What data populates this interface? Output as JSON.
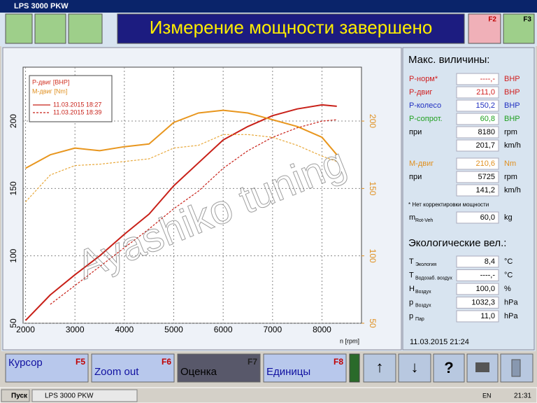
{
  "window_title": "LPS 3000 PKW",
  "header": {
    "title": "Измерение мощности завершено",
    "keys": [
      "F2",
      "F3"
    ]
  },
  "chart_data": {
    "type": "line",
    "legend_titles": [
      {
        "text": "P-двиг [BHP]",
        "color": "#d03020"
      },
      {
        "text": "M-двиг [Nm]",
        "color": "#e09020"
      }
    ],
    "x_label": "n [rpm]",
    "x": [
      2000,
      2500,
      3000,
      3500,
      4000,
      4500,
      5000,
      5500,
      6000,
      6500,
      7000,
      7500,
      8000,
      8300
    ],
    "series": [
      {
        "name": "11.03.2015 18:27",
        "color": "#c82018",
        "dash": false,
        "values": [
          52,
          71,
          86,
          100,
          116,
          131,
          152,
          169,
          186,
          196,
          204,
          209,
          212,
          211
        ]
      },
      {
        "name": "11.03.2015 18:39",
        "color": "#c82018",
        "dash": true,
        "values": [
          null,
          64,
          78,
          92,
          106,
          120,
          135,
          148,
          165,
          178,
          188,
          195,
          200,
          201
        ]
      },
      {
        "color": "#e8961e",
        "dash": false,
        "axis": "y2",
        "values": [
          165,
          175,
          180,
          178,
          181,
          183,
          199,
          206,
          208,
          206,
          201,
          196,
          188,
          175
        ]
      },
      {
        "color": "#e8a83a",
        "dash": true,
        "axis": "y2",
        "values": [
          140,
          160,
          167,
          168,
          170,
          172,
          180,
          182,
          190,
          190,
          188,
          182,
          174,
          170
        ]
      }
    ],
    "xlim": [
      1950,
      8800
    ],
    "xticks": [
      2000,
      3000,
      4000,
      5000,
      6000,
      7000,
      8000
    ],
    "ylim": [
      50,
      240
    ],
    "yticks": [
      50,
      100,
      150,
      200
    ],
    "y2lim": [
      50,
      240
    ],
    "y2ticks": [
      50,
      100,
      150,
      200
    ],
    "y2color": "#e09020",
    "grid": true
  },
  "watermark": "Ayashiko tuning",
  "max_panel": {
    "title": "Макс. виличины:",
    "rows": [
      {
        "label": "P-норм*",
        "value": "----,-",
        "unit": "BHP",
        "color": "#d02020"
      },
      {
        "label": "P-двиг",
        "value": "211,0",
        "unit": "BHP",
        "color": "#d02020"
      },
      {
        "label": "P-колесо",
        "value": "150,2",
        "unit": "BHP",
        "color": "#2030c0"
      },
      {
        "label": "P-сопрот.",
        "value": "60,8",
        "unit": "BHP",
        "color": "#20a020"
      },
      {
        "label": "при",
        "value": "8180",
        "unit": "rpm"
      },
      {
        "value": "201,7",
        "unit": "km/h"
      },
      {
        "label": "M-двиг",
        "value": "210,6",
        "unit": "Nm",
        "color": "#e09020"
      },
      {
        "label": "при",
        "value": "5725",
        "unit": "rpm"
      },
      {
        "value": "141,2",
        "unit": "km/h"
      }
    ],
    "note": "* Нет корректировки мощности",
    "mass": {
      "label": "m",
      "sub": "Rot-Veh",
      "value": "60,0",
      "unit": "kg"
    }
  },
  "eco_panel": {
    "title": "Экологические вел.:",
    "rows": [
      {
        "label": "T",
        "sub": "Экология",
        "value": "8,4",
        "unit": "°C"
      },
      {
        "label": "T",
        "sub": "Водозаб. воздух",
        "value": "----,-",
        "unit": "°C"
      },
      {
        "label": "H",
        "sub": "Воздух",
        "value": "100,0",
        "unit": "%"
      },
      {
        "label": "p",
        "sub": "Воздух",
        "value": "1032,3",
        "unit": "hPa"
      },
      {
        "label": "p",
        "sub": "Пар",
        "value": "11,0",
        "unit": "hPa"
      }
    ],
    "timestamp": "11.03.2015   21:24"
  },
  "buttons": [
    {
      "label": "Курсор",
      "key": "F5"
    },
    {
      "label": "Zoom out",
      "key": "F6"
    },
    {
      "label": "Оценка",
      "key": "F7"
    },
    {
      "label": "Единицы",
      "key": "F8"
    }
  ],
  "taskbar": {
    "start": "Пуск",
    "task": "LPS 3000 PKW",
    "lang": "EN",
    "clock": "21:31"
  }
}
